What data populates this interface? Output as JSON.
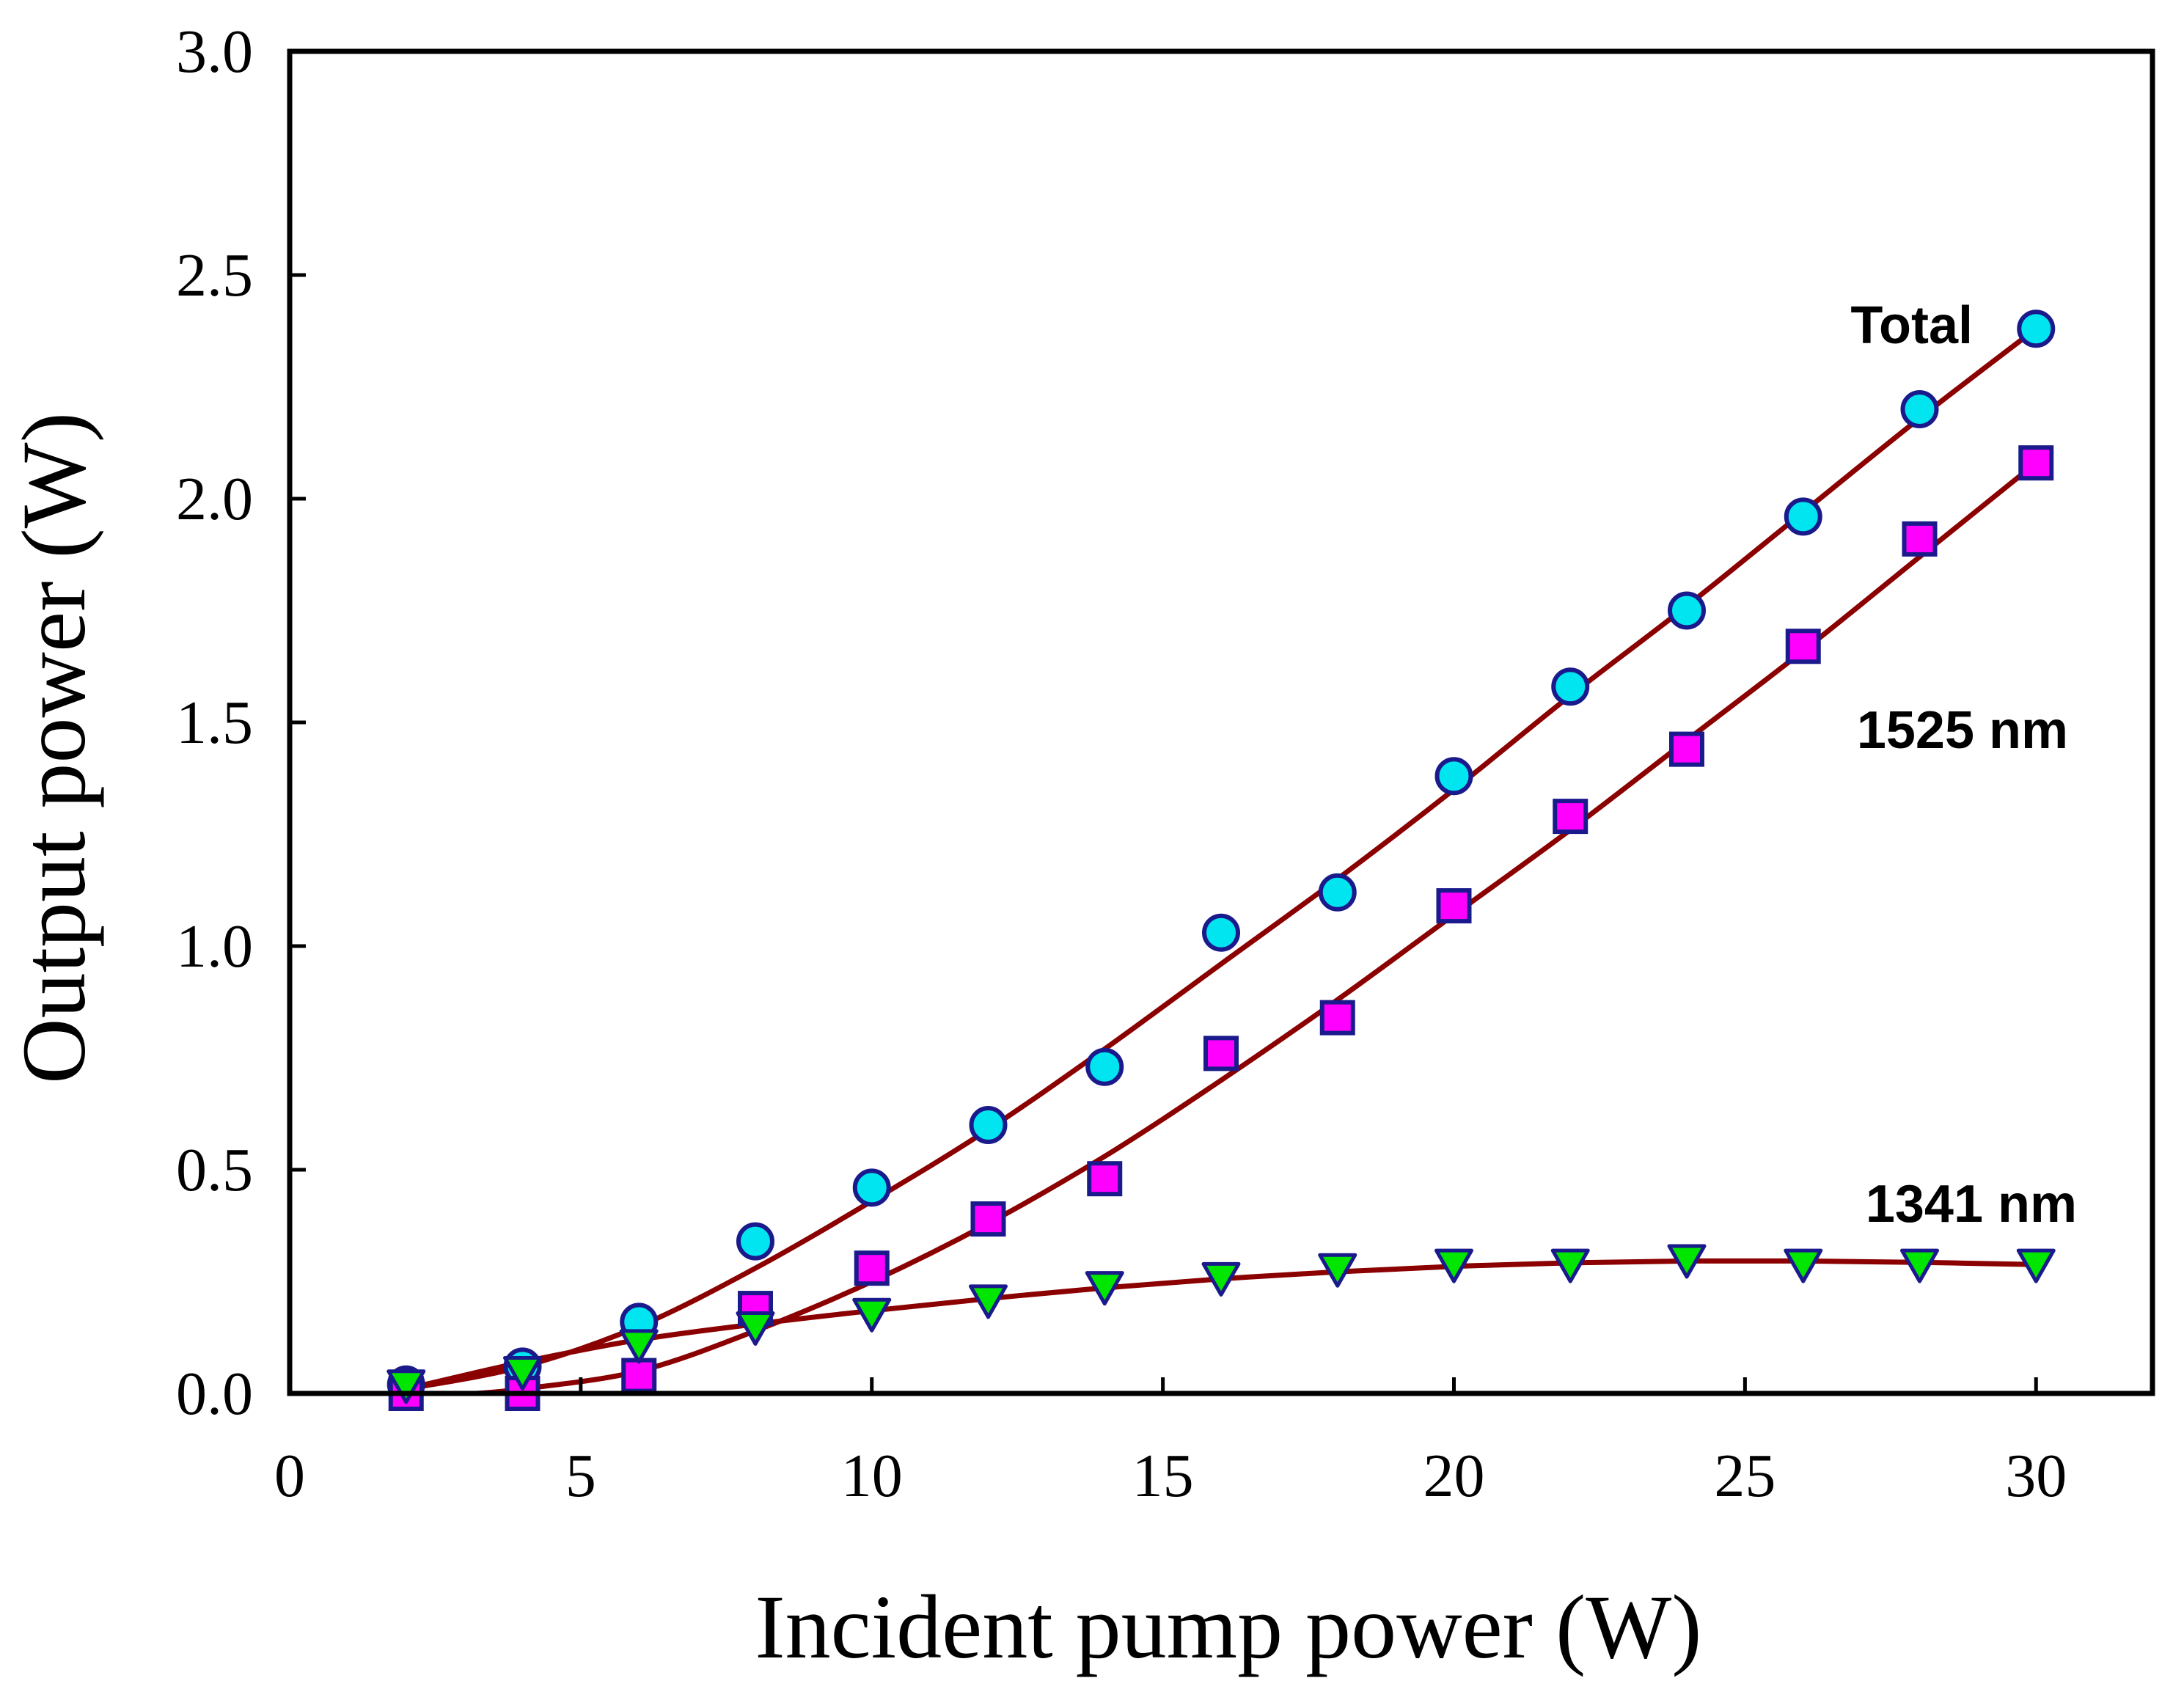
{
  "chart_data": {
    "type": "scatter",
    "title": "",
    "xlabel": "Incident pump power (W)",
    "ylabel": "Output power (W)",
    "xlim": [
      0,
      32
    ],
    "ylim": [
      0,
      3.0
    ],
    "xticks": [
      0,
      5,
      10,
      15,
      20,
      25,
      30
    ],
    "yticks": [
      0.0,
      0.5,
      1.0,
      1.5,
      2.0,
      2.5,
      3.0
    ],
    "xtick_labels": [
      "0",
      "5",
      "10",
      "15",
      "20",
      "25",
      "30"
    ],
    "ytick_labels": [
      "0.0",
      "0.5",
      "1.0",
      "1.5",
      "2.0",
      "2.5",
      "3.0"
    ],
    "grid": false,
    "fit_color": "#8b0000",
    "marker_edge_color": "#1a1a8c",
    "series": [
      {
        "name": "Total",
        "label": "Total",
        "marker": "circle",
        "color": "#00e5f0",
        "x": [
          2,
          4,
          6,
          8,
          10,
          12,
          14,
          16,
          18,
          20,
          22,
          24,
          26,
          28,
          30
        ],
        "values": [
          0.02,
          0.06,
          0.16,
          0.34,
          0.46,
          0.6,
          0.73,
          1.03,
          1.12,
          1.38,
          1.58,
          1.75,
          1.96,
          2.2,
          2.38
        ],
        "fit": [
          [
            2,
            0.01
          ],
          [
            4,
            0.06
          ],
          [
            6,
            0.15
          ],
          [
            8,
            0.28
          ],
          [
            10,
            0.43
          ],
          [
            12,
            0.59
          ],
          [
            14,
            0.77
          ],
          [
            16,
            0.96
          ],
          [
            18,
            1.15
          ],
          [
            20,
            1.35
          ],
          [
            22,
            1.56
          ],
          [
            24,
            1.76
          ],
          [
            26,
            1.97
          ],
          [
            28,
            2.18
          ],
          [
            30,
            2.38
          ]
        ]
      },
      {
        "name": "1525 nm",
        "label": "1525 nm",
        "marker": "square",
        "color": "#ff00ff",
        "x": [
          2,
          4,
          6,
          8,
          10,
          12,
          14,
          16,
          18,
          20,
          22,
          24,
          26,
          28,
          30
        ],
        "values": [
          0.0,
          0.0,
          0.04,
          0.19,
          0.28,
          0.39,
          0.48,
          0.76,
          0.84,
          1.09,
          1.29,
          1.44,
          1.67,
          1.91,
          2.08
        ],
        "fit": [
          [
            3.2,
            0.0
          ],
          [
            4,
            0.01
          ],
          [
            6,
            0.05
          ],
          [
            8,
            0.14
          ],
          [
            10,
            0.25
          ],
          [
            12,
            0.38
          ],
          [
            14,
            0.53
          ],
          [
            16,
            0.7
          ],
          [
            18,
            0.88
          ],
          [
            20,
            1.07
          ],
          [
            22,
            1.26
          ],
          [
            24,
            1.46
          ],
          [
            26,
            1.66
          ],
          [
            28,
            1.87
          ],
          [
            30,
            2.08
          ]
        ]
      },
      {
        "name": "1341 nm",
        "label": "1341 nm",
        "marker": "triangle-down",
        "color": "#00e600",
        "x": [
          2,
          4,
          6,
          8,
          10,
          12,
          14,
          16,
          18,
          20,
          22,
          24,
          26,
          28,
          30
        ],
        "values": [
          0.02,
          0.05,
          0.11,
          0.15,
          0.18,
          0.21,
          0.24,
          0.26,
          0.28,
          0.29,
          0.29,
          0.3,
          0.29,
          0.29,
          0.29
        ],
        "fit": [
          [
            2,
            0.01
          ],
          [
            4,
            0.07
          ],
          [
            6,
            0.12
          ],
          [
            8,
            0.155
          ],
          [
            10,
            0.185
          ],
          [
            12,
            0.212
          ],
          [
            14,
            0.236
          ],
          [
            16,
            0.256
          ],
          [
            18,
            0.272
          ],
          [
            20,
            0.284
          ],
          [
            22,
            0.292
          ],
          [
            24,
            0.296
          ],
          [
            26,
            0.296
          ],
          [
            28,
            0.293
          ],
          [
            30,
            0.288
          ]
        ]
      }
    ]
  }
}
